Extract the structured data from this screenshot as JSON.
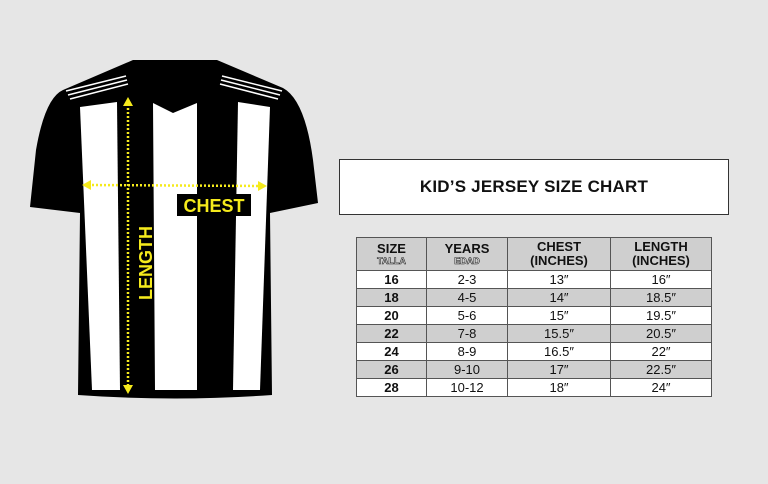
{
  "jersey": {
    "chest_label": "CHEST",
    "length_label": "LENGTH",
    "arrow_color": "#f5ea1c",
    "stripe_colors": [
      "#000000",
      "#ffffff"
    ]
  },
  "title": "KID’S JERSEY SIZE CHART",
  "table": {
    "headers": [
      {
        "label": "SIZE",
        "sub": "TALLA"
      },
      {
        "label": "YEARS",
        "sub": "EDAD"
      },
      {
        "label": "CHEST",
        "sub2": "(INCHES)"
      },
      {
        "label": "LENGTH",
        "sub2": "(INCHES)"
      }
    ],
    "rows": [
      [
        "16",
        "2-3",
        "13″",
        "16″"
      ],
      [
        "18",
        "4-5",
        "14″",
        "18.5″"
      ],
      [
        "20",
        "5-6",
        "15″",
        "19.5″"
      ],
      [
        "22",
        "7-8",
        "15.5″",
        "20.5″"
      ],
      [
        "24",
        "8-9",
        "16.5″",
        "22″"
      ],
      [
        "26",
        "9-10",
        "17″",
        "22.5″"
      ],
      [
        "28",
        "10-12",
        "18″",
        "24″"
      ]
    ]
  }
}
